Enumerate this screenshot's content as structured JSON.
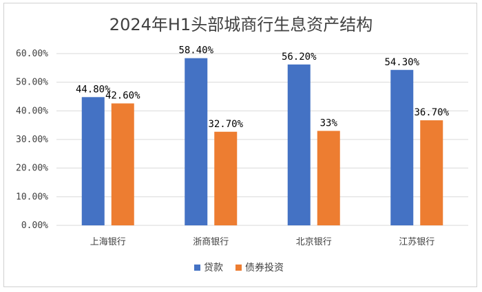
{
  "chart_data": {
    "type": "bar",
    "title": "2024年H1头部城商行生息资产结构",
    "categories": [
      "上海银行",
      "浙商银行",
      "北京银行",
      "江苏银行"
    ],
    "series": [
      {
        "name": "贷款",
        "color": "#4472C4",
        "values": [
          44.8,
          58.4,
          56.2,
          54.3
        ],
        "labels": [
          "44.80%",
          "58.40%",
          "56.20%",
          "54.30%"
        ]
      },
      {
        "name": "债券投资",
        "color": "#ED7D31",
        "values": [
          42.6,
          32.7,
          33.0,
          36.7
        ],
        "labels": [
          "42.60%",
          "32.70%",
          "33%",
          "36.70%"
        ]
      }
    ],
    "yticks": [
      "0.00%",
      "10.00%",
      "20.00%",
      "30.00%",
      "40.00%",
      "50.00%",
      "60.00%"
    ],
    "ylim": [
      0,
      60
    ],
    "grid": true,
    "legend": "bottom"
  }
}
